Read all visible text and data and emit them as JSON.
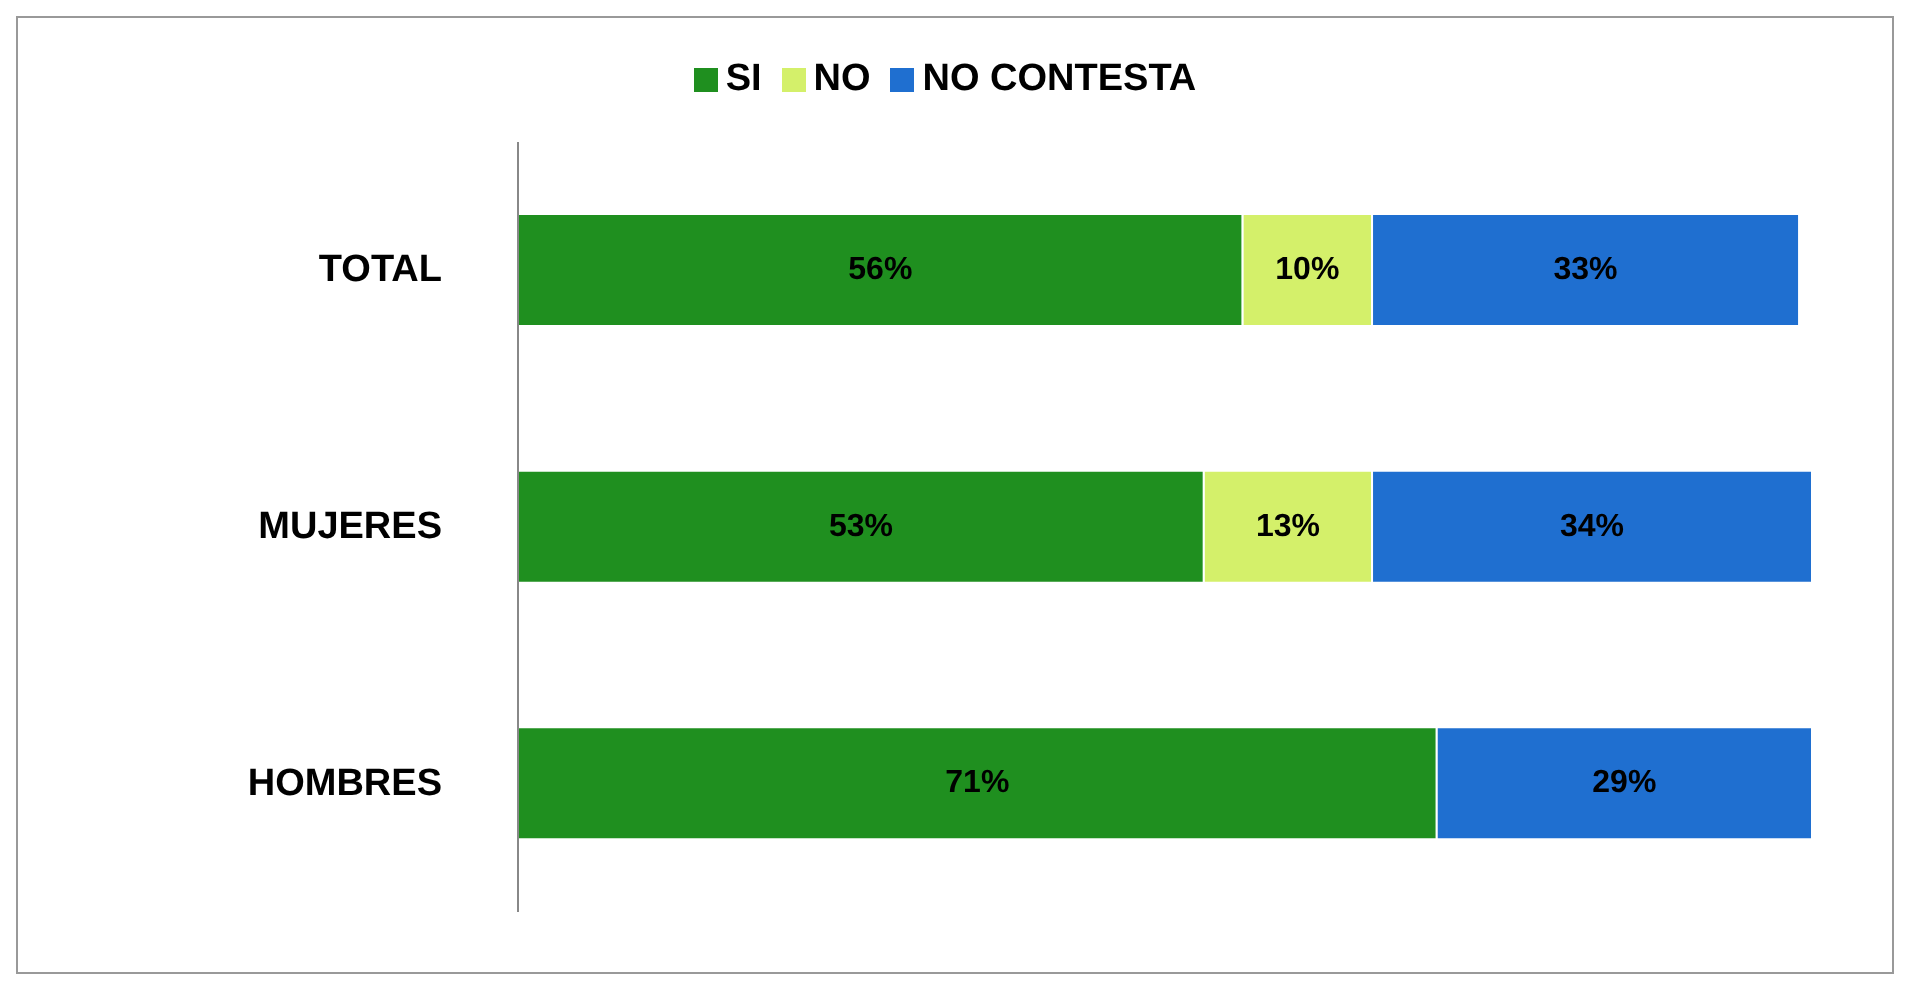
{
  "chart_data": {
    "type": "bar",
    "orientation": "horizontal",
    "stacked": true,
    "categories": [
      "TOTAL",
      "MUJERES",
      "HOMBRES"
    ],
    "series": [
      {
        "name": "SI",
        "color": "#1f8f1f",
        "values": [
          56,
          53,
          71
        ],
        "value_labels": [
          "56%",
          "53%",
          "71%"
        ]
      },
      {
        "name": "NO",
        "color": "#d4f06a",
        "values": [
          10,
          13,
          null
        ],
        "value_labels": [
          "10%",
          "13%",
          null
        ]
      },
      {
        "name": "NO CONTESTA",
        "color": "#1f6fd0",
        "values": [
          33,
          34,
          29
        ],
        "value_labels": [
          "33%",
          "34%",
          "29%"
        ]
      }
    ],
    "legend": "top",
    "tick_labels": "y"
  }
}
